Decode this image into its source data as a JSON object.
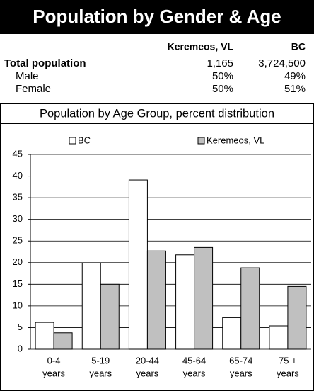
{
  "header": {
    "title": "Population by Gender & Age"
  },
  "table": {
    "columns": [
      "Keremeos, VL",
      "BC"
    ],
    "rows": [
      {
        "label": "Total population",
        "values": [
          "1,165",
          "3,724,500"
        ]
      },
      {
        "label": "Male",
        "values": [
          "50%",
          "49%"
        ]
      },
      {
        "label": "Female",
        "values": [
          "50%",
          "51%"
        ]
      }
    ]
  },
  "chart_data": {
    "type": "bar",
    "title": "Population by Age Group, percent distribution",
    "categories": [
      [
        "0-4",
        "years"
      ],
      [
        "5-19",
        "years"
      ],
      [
        "20-44",
        "years"
      ],
      [
        "45-64",
        "years"
      ],
      [
        "65-74",
        "years"
      ],
      [
        "75 +",
        "years"
      ]
    ],
    "series": [
      {
        "name": "BC",
        "color": "#ffffff",
        "values": [
          6.2,
          19.9,
          39.1,
          21.8,
          7.3,
          5.4
        ]
      },
      {
        "name": "Keremeos, VL",
        "color": "#c0c0c0",
        "values": [
          3.8,
          15.0,
          22.7,
          23.5,
          18.8,
          14.5
        ]
      }
    ],
    "ylim": [
      0,
      45
    ],
    "yticks": [
      0,
      5,
      10,
      15,
      20,
      25,
      30,
      35,
      40,
      45
    ],
    "grid": true,
    "legend": "top"
  }
}
